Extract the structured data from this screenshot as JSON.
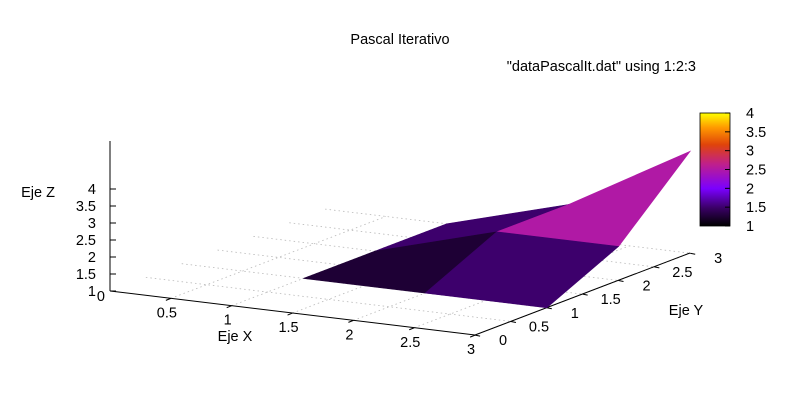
{
  "chart_data": {
    "type": "surface",
    "title": "Pascal Iterativo",
    "legend": {
      "entry": "\"dataPascalIt.dat\" using 1:2:3",
      "placement": "top-right"
    },
    "xlabel": "Eje X",
    "ylabel": "Eje Y",
    "zlabel": "Eje Z",
    "x_ticks": [
      "0.5",
      "1",
      "1.5",
      "2",
      "2.5",
      "3"
    ],
    "y_ticks": [
      "0",
      "0.5",
      "1",
      "1.5",
      "2",
      "2.5",
      "3"
    ],
    "z_ticks": [
      "1",
      "1.5",
      "2",
      "2.5",
      "3",
      "3.5",
      "4"
    ],
    "z_base_tick": "0",
    "xlim": [
      0,
      3
    ],
    "ylim": [
      0,
      3
    ],
    "zlim": [
      1,
      4
    ],
    "grid": "dotted xy base grid",
    "x": [
      1,
      2,
      3
    ],
    "y": [
      1,
      2,
      3
    ],
    "z": [
      [
        1,
        1,
        1
      ],
      [
        1,
        2,
        2
      ],
      [
        1,
        2,
        4
      ]
    ],
    "colorbar": {
      "range": [
        1,
        4
      ],
      "ticks": [
        "1",
        "1.5",
        "2",
        "2.5",
        "3",
        "3.5",
        "4"
      ],
      "palette": [
        "#000000",
        "#3a0066",
        "#7a00ff",
        "#c0208a",
        "#e0440a",
        "#ff9900",
        "#ffff00"
      ]
    }
  }
}
